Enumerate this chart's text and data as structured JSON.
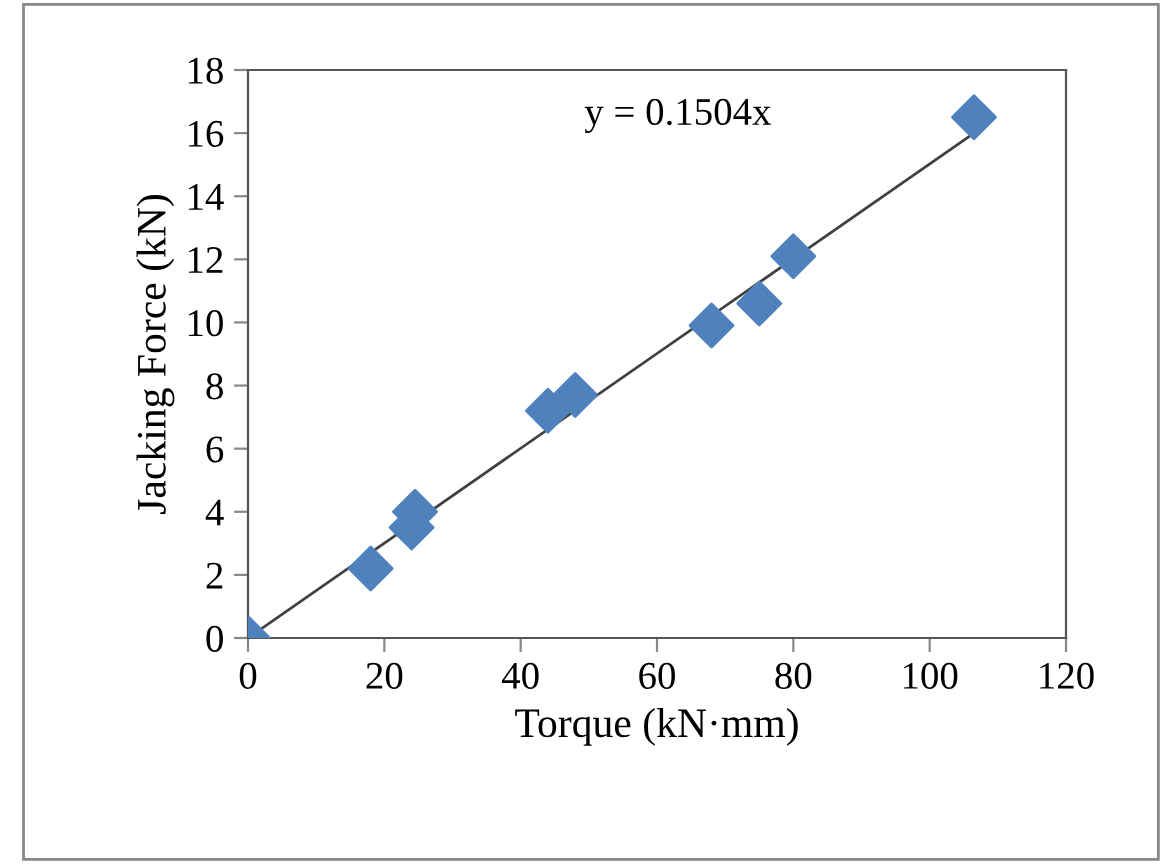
{
  "chart_data": {
    "type": "scatter",
    "xlabel": "Torque (kN·mm)",
    "ylabel": "Jacking Force (kN)",
    "series": [
      {
        "color": "#4f81bd",
        "marker": "diamond",
        "x": [
          0,
          18,
          24,
          24.5,
          42.5,
          44,
          47,
          48,
          68,
          75,
          80,
          106.5
        ],
        "values": [
          0,
          2.2,
          3.5,
          4.0,
          null,
          7.2,
          null,
          7.7,
          9.9,
          10.6,
          12.1,
          16.5
        ]
      },
      {
        "type": "line",
        "color": "#404040",
        "marker": "none",
        "x": [
          0,
          106.5
        ],
        "values": [
          0,
          16.0
        ]
      }
    ],
    "annotations": [
      "y = 0.1504x"
    ],
    "xlim": [
      0,
      120
    ],
    "ylim": [
      0,
      18
    ],
    "xticks": [
      0,
      20,
      40,
      60,
      80,
      100,
      120
    ],
    "yticks": [
      0,
      2,
      4,
      6,
      8,
      10,
      12,
      14,
      16,
      18
    ],
    "grid": false,
    "legend": false
  }
}
